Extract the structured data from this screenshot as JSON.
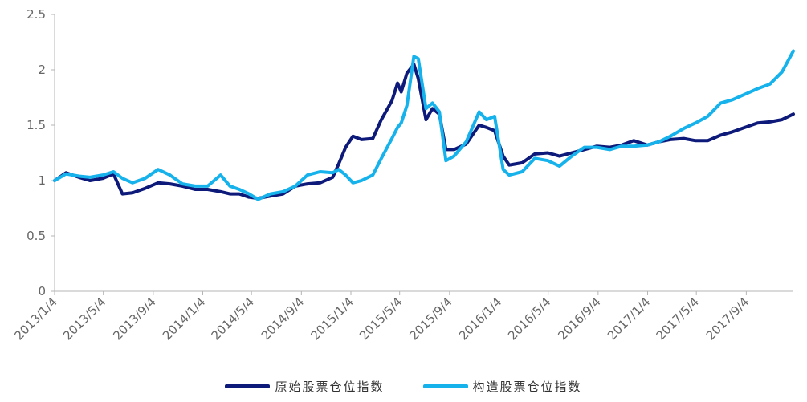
{
  "chart_data": {
    "type": "line",
    "title": "",
    "xlabel": "",
    "ylabel": "",
    "ylim": [
      0,
      2.5
    ],
    "yticks": [
      "0",
      "0.5",
      "1",
      "1.5",
      "2",
      "2.5"
    ],
    "ytick_values": [
      0,
      0.5,
      1,
      1.5,
      2,
      2.5
    ],
    "xlim": [
      "2013-01-04",
      "2017-12-29"
    ],
    "xticks": [
      "2013/1/4",
      "2013/5/4",
      "2013/9/4",
      "2014/1/4",
      "2014/5/4",
      "2014/9/4",
      "2015/1/4",
      "2015/5/4",
      "2015/9/4",
      "2016/1/4",
      "2016/5/4",
      "2016/9/4",
      "2017/1/4",
      "2017/5/4",
      "2017/9/4"
    ],
    "xtick_dates": [
      "2013-01-04",
      "2013-05-04",
      "2013-09-04",
      "2014-01-04",
      "2014-05-04",
      "2014-09-04",
      "2015-01-04",
      "2015-05-04",
      "2015-09-04",
      "2016-01-04",
      "2016-05-04",
      "2016-09-04",
      "2017-01-04",
      "2017-05-04",
      "2017-09-04"
    ],
    "grid": false,
    "legend_position": "bottom",
    "series": [
      {
        "name": "原始股票仓位指数",
        "color": "#0d1a7a",
        "points": [
          [
            "2013-01-04",
            1.0
          ],
          [
            "2013-02-01",
            1.07
          ],
          [
            "2013-03-05",
            1.03
          ],
          [
            "2013-04-01",
            1.0
          ],
          [
            "2013-05-03",
            1.02
          ],
          [
            "2013-05-29",
            1.06
          ],
          [
            "2013-06-20",
            0.88
          ],
          [
            "2013-07-15",
            0.89
          ],
          [
            "2013-08-15",
            0.93
          ],
          [
            "2013-09-16",
            0.98
          ],
          [
            "2013-10-15",
            0.97
          ],
          [
            "2013-11-15",
            0.95
          ],
          [
            "2013-12-16",
            0.92
          ],
          [
            "2014-01-16",
            0.92
          ],
          [
            "2014-02-17",
            0.9
          ],
          [
            "2014-03-12",
            0.88
          ],
          [
            "2014-04-04",
            0.88
          ],
          [
            "2014-04-28",
            0.85
          ],
          [
            "2014-05-20",
            0.84
          ],
          [
            "2014-06-20",
            0.86
          ],
          [
            "2014-07-21",
            0.88
          ],
          [
            "2014-08-20",
            0.95
          ],
          [
            "2014-09-19",
            0.97
          ],
          [
            "2014-10-20",
            0.98
          ],
          [
            "2014-11-20",
            1.03
          ],
          [
            "2014-12-05",
            1.15
          ],
          [
            "2014-12-22",
            1.3
          ],
          [
            "2015-01-09",
            1.4
          ],
          [
            "2015-01-30",
            1.37
          ],
          [
            "2015-02-27",
            1.38
          ],
          [
            "2015-03-20",
            1.55
          ],
          [
            "2015-04-15",
            1.72
          ],
          [
            "2015-04-29",
            1.88
          ],
          [
            "2015-05-08",
            1.8
          ],
          [
            "2015-05-22",
            1.97
          ],
          [
            "2015-06-08",
            2.05
          ],
          [
            "2015-06-19",
            1.92
          ],
          [
            "2015-07-08",
            1.55
          ],
          [
            "2015-07-24",
            1.65
          ],
          [
            "2015-08-10",
            1.6
          ],
          [
            "2015-08-26",
            1.28
          ],
          [
            "2015-09-15",
            1.28
          ],
          [
            "2015-10-15",
            1.33
          ],
          [
            "2015-11-16",
            1.5
          ],
          [
            "2015-12-04",
            1.48
          ],
          [
            "2015-12-24",
            1.45
          ],
          [
            "2016-01-14",
            1.22
          ],
          [
            "2016-01-29",
            1.14
          ],
          [
            "2016-03-01",
            1.16
          ],
          [
            "2016-04-01",
            1.24
          ],
          [
            "2016-05-03",
            1.25
          ],
          [
            "2016-06-01",
            1.22
          ],
          [
            "2016-07-01",
            1.25
          ],
          [
            "2016-08-01",
            1.28
          ],
          [
            "2016-09-01",
            1.31
          ],
          [
            "2016-10-03",
            1.3
          ],
          [
            "2016-11-01",
            1.32
          ],
          [
            "2016-12-01",
            1.36
          ],
          [
            "2017-01-03",
            1.32
          ],
          [
            "2017-02-01",
            1.35
          ],
          [
            "2017-03-01",
            1.37
          ],
          [
            "2017-04-03",
            1.38
          ],
          [
            "2017-05-02",
            1.36
          ],
          [
            "2017-06-01",
            1.36
          ],
          [
            "2017-07-03",
            1.41
          ],
          [
            "2017-08-01",
            1.44
          ],
          [
            "2017-09-01",
            1.48
          ],
          [
            "2017-10-02",
            1.52
          ],
          [
            "2017-11-01",
            1.53
          ],
          [
            "2017-12-01",
            1.55
          ],
          [
            "2017-12-29",
            1.6
          ]
        ]
      },
      {
        "name": "构造股票仓位指数",
        "color": "#16b2ec",
        "points": [
          [
            "2013-01-04",
            1.0
          ],
          [
            "2013-02-01",
            1.06
          ],
          [
            "2013-03-05",
            1.04
          ],
          [
            "2013-04-01",
            1.03
          ],
          [
            "2013-05-03",
            1.05
          ],
          [
            "2013-05-29",
            1.08
          ],
          [
            "2013-06-20",
            1.02
          ],
          [
            "2013-07-15",
            0.98
          ],
          [
            "2013-08-15",
            1.02
          ],
          [
            "2013-09-16",
            1.1
          ],
          [
            "2013-10-15",
            1.05
          ],
          [
            "2013-11-15",
            0.97
          ],
          [
            "2013-12-16",
            0.95
          ],
          [
            "2014-01-16",
            0.95
          ],
          [
            "2014-02-17",
            1.05
          ],
          [
            "2014-03-12",
            0.95
          ],
          [
            "2014-04-04",
            0.92
          ],
          [
            "2014-04-28",
            0.88
          ],
          [
            "2014-05-20",
            0.83
          ],
          [
            "2014-06-20",
            0.88
          ],
          [
            "2014-07-21",
            0.9
          ],
          [
            "2014-08-20",
            0.95
          ],
          [
            "2014-09-19",
            1.05
          ],
          [
            "2014-10-20",
            1.08
          ],
          [
            "2014-11-20",
            1.07
          ],
          [
            "2014-12-05",
            1.1
          ],
          [
            "2014-12-22",
            1.05
          ],
          [
            "2015-01-09",
            0.98
          ],
          [
            "2015-01-30",
            1.0
          ],
          [
            "2015-02-27",
            1.05
          ],
          [
            "2015-03-20",
            1.2
          ],
          [
            "2015-04-15",
            1.38
          ],
          [
            "2015-04-29",
            1.48
          ],
          [
            "2015-05-08",
            1.52
          ],
          [
            "2015-05-22",
            1.68
          ],
          [
            "2015-06-08",
            2.12
          ],
          [
            "2015-06-19",
            2.1
          ],
          [
            "2015-07-08",
            1.65
          ],
          [
            "2015-07-24",
            1.7
          ],
          [
            "2015-08-10",
            1.62
          ],
          [
            "2015-08-26",
            1.18
          ],
          [
            "2015-09-15",
            1.22
          ],
          [
            "2015-10-15",
            1.35
          ],
          [
            "2015-11-16",
            1.62
          ],
          [
            "2015-12-04",
            1.55
          ],
          [
            "2015-12-24",
            1.58
          ],
          [
            "2016-01-14",
            1.1
          ],
          [
            "2016-01-29",
            1.05
          ],
          [
            "2016-03-01",
            1.08
          ],
          [
            "2016-04-01",
            1.2
          ],
          [
            "2016-05-03",
            1.18
          ],
          [
            "2016-06-01",
            1.13
          ],
          [
            "2016-07-01",
            1.22
          ],
          [
            "2016-08-01",
            1.3
          ],
          [
            "2016-09-01",
            1.3
          ],
          [
            "2016-10-03",
            1.28
          ],
          [
            "2016-11-01",
            1.31
          ],
          [
            "2016-12-01",
            1.31
          ],
          [
            "2017-01-03",
            1.32
          ],
          [
            "2017-02-01",
            1.35
          ],
          [
            "2017-03-01",
            1.4
          ],
          [
            "2017-04-03",
            1.47
          ],
          [
            "2017-05-02",
            1.52
          ],
          [
            "2017-06-01",
            1.58
          ],
          [
            "2017-07-03",
            1.7
          ],
          [
            "2017-08-01",
            1.73
          ],
          [
            "2017-09-01",
            1.78
          ],
          [
            "2017-10-02",
            1.83
          ],
          [
            "2017-11-01",
            1.87
          ],
          [
            "2017-12-01",
            1.98
          ],
          [
            "2017-12-29",
            2.17
          ]
        ]
      }
    ]
  },
  "legend": {
    "series_a_label": "原始股票仓位指数",
    "series_b_label": "构造股票仓位指数"
  }
}
